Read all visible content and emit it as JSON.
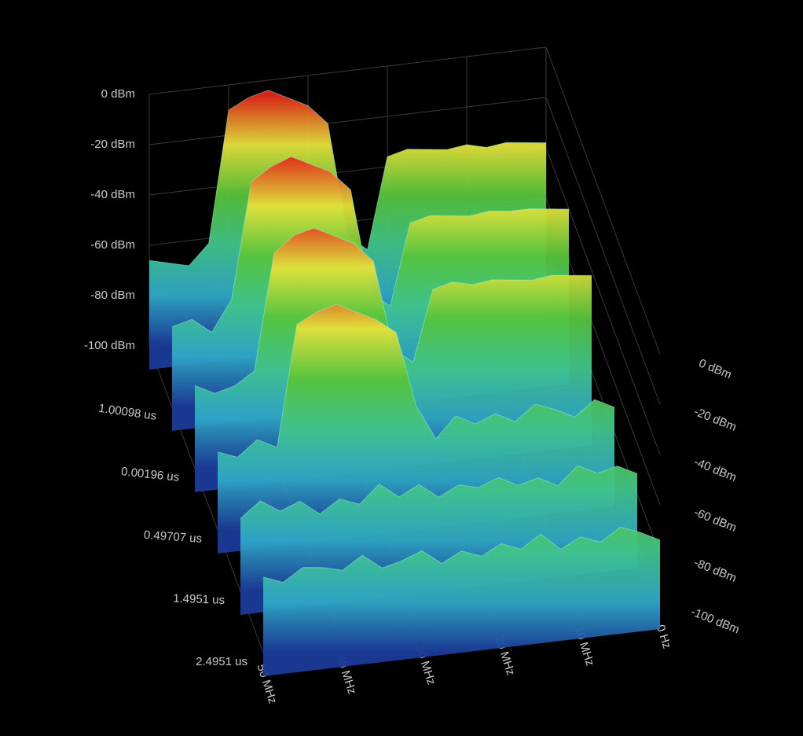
{
  "chart_data": {
    "type": "waterfall3d",
    "xlim": [
      0,
      50
    ],
    "xticks": [
      {
        "value": 50,
        "label": "50 MHz"
      },
      {
        "value": 40,
        "label": "40 MHz"
      },
      {
        "value": 30,
        "label": "30 MHz"
      },
      {
        "value": 20,
        "label": "20 MHz"
      },
      {
        "value": 10,
        "label": "10 MHz"
      },
      {
        "value": 0,
        "label": "0 Hz"
      }
    ],
    "zlim": [
      -100,
      0
    ],
    "zticks": [
      {
        "value": 0,
        "label": "0 dBm"
      },
      {
        "value": -20,
        "label": "-20 dBm"
      },
      {
        "value": -40,
        "label": "-40 dBm"
      },
      {
        "value": -60,
        "label": "-60 dBm"
      },
      {
        "value": -80,
        "label": "-80 dBm"
      },
      {
        "value": -100,
        "label": "-100 dBm"
      }
    ],
    "time_tick_labels": [
      "1.00098 us",
      "0.00196 us",
      "0.49707 us",
      "1.4951 us",
      "2.4951 us"
    ],
    "colorscale": [
      "#1b3a9a",
      "#2fa8c8",
      "#3fc48a",
      "#57c43a",
      "#e6e23a",
      "#e2231a"
    ],
    "x": [
      0,
      2.5,
      5,
      7.5,
      10,
      12.5,
      15,
      17.5,
      20,
      22.5,
      25,
      27.5,
      30,
      32.5,
      35,
      37.5,
      40,
      42.5,
      45,
      47.5,
      50
    ],
    "series": [
      {
        "values": [
          -38,
          -37,
          -36,
          -37,
          -35,
          -36,
          -35,
          -34,
          -36,
          -72,
          -66,
          -20,
          -12,
          -8,
          -4,
          -6,
          -10,
          -62,
          -70,
          -68,
          -66
        ]
      },
      {
        "values": [
          -40,
          -39,
          -38,
          -38,
          -37,
          -38,
          -37,
          -36,
          -38,
          -70,
          -64,
          -22,
          -14,
          -10,
          -6,
          -9,
          -14,
          -60,
          -72,
          -66,
          -68
        ]
      },
      {
        "values": [
          -42,
          -41,
          -40,
          -41,
          -40,
          -39,
          -40,
          -38,
          -40,
          -68,
          -62,
          -26,
          -18,
          -14,
          -10,
          -12,
          -18,
          -64,
          -69,
          -71,
          -67
        ]
      },
      {
        "values": [
          -70,
          -66,
          -72,
          -68,
          -65,
          -71,
          -67,
          -70,
          -66,
          -74,
          -60,
          -30,
          -24,
          -20,
          -16,
          -18,
          -22,
          -70,
          -66,
          -72,
          -69
        ]
      },
      {
        "values": [
          -72,
          -68,
          -70,
          -66,
          -73,
          -69,
          -71,
          -67,
          -70,
          -68,
          -72,
          -66,
          -70,
          -64,
          -71,
          -68,
          -73,
          -67,
          -70,
          -65,
          -71
        ]
      },
      {
        "values": [
          -74,
          -70,
          -67,
          -72,
          -69,
          -73,
          -66,
          -71,
          -68,
          -72,
          -69,
          -73,
          -67,
          -70,
          -72,
          -66,
          -71,
          -69,
          -68,
          -73,
          -70
        ]
      }
    ]
  }
}
